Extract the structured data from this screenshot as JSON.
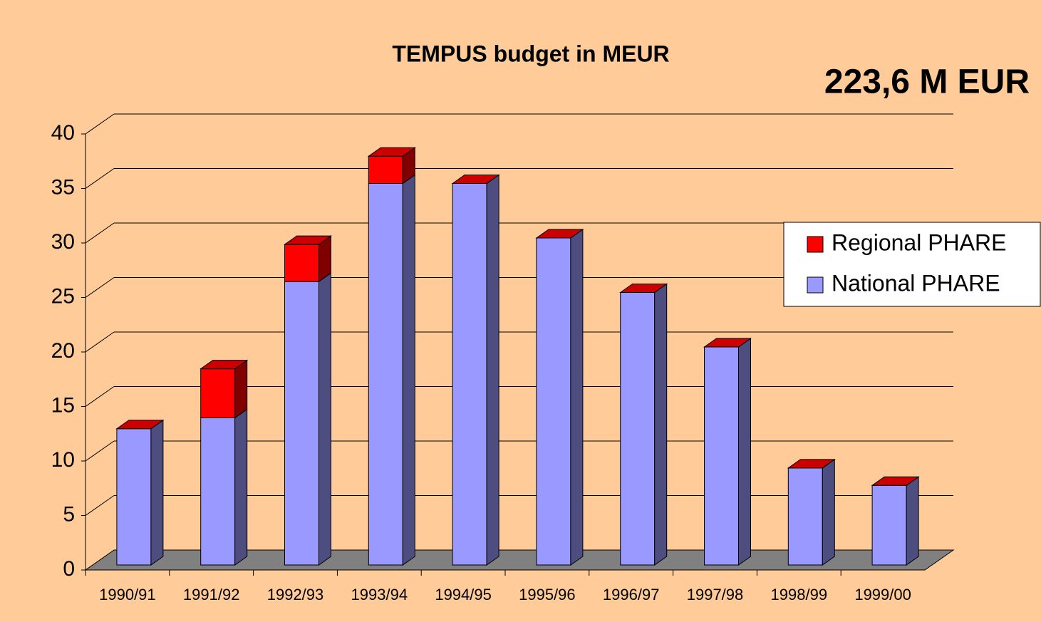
{
  "chart_data": {
    "type": "bar3d_stacked",
    "title": "TEMPUS budget in MEUR",
    "annotation": "223,6 M EUR",
    "categories": [
      "1990/91",
      "1991/92",
      "1992/93",
      "1993/94",
      "1994/95",
      "1995/96",
      "1996/97",
      "1997/98",
      "1998/99",
      "1999/00"
    ],
    "series": [
      {
        "name": "Regional PHARE",
        "color": "#ff0000",
        "values": [
          0,
          4.5,
          3.4,
          2.5,
          0,
          0,
          0,
          0,
          0,
          0
        ]
      },
      {
        "name": "National PHARE",
        "color": "#9999ff",
        "values": [
          12.5,
          13.5,
          26,
          35,
          35,
          30,
          25,
          20,
          8.9,
          7.3
        ]
      }
    ],
    "ylim": [
      0,
      40
    ],
    "yticks": [
      0,
      5,
      10,
      15,
      20,
      25,
      30,
      35,
      40
    ],
    "grid": true
  }
}
